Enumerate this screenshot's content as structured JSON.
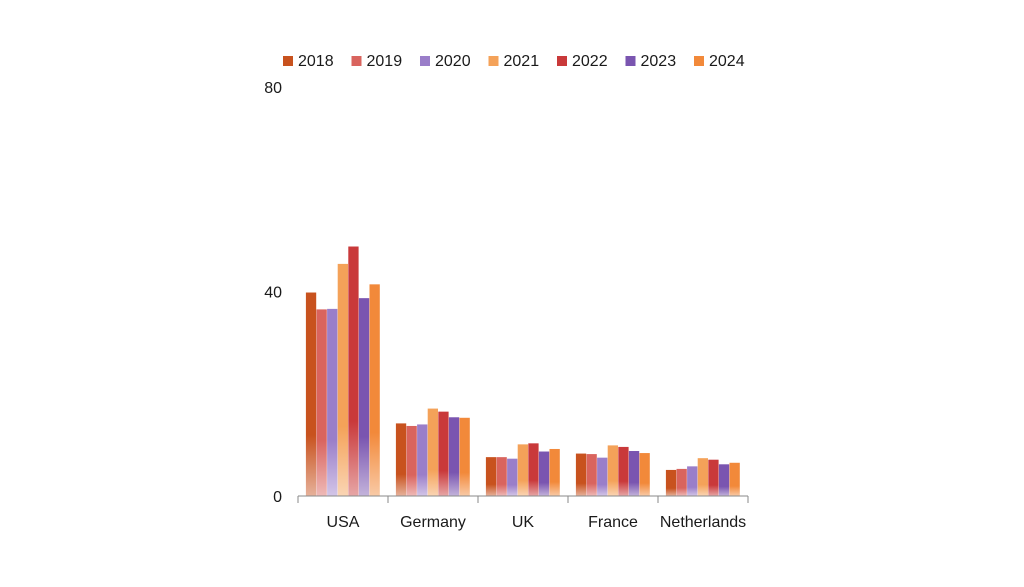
{
  "chart_data": {
    "type": "bar",
    "title": "",
    "xlabel": "",
    "ylabel": "",
    "ylim": [
      0,
      80
    ],
    "yticks": [
      {
        "value": 0,
        "label": "0"
      },
      {
        "value": 40,
        "label": "40"
      },
      {
        "value": 80,
        "label": "80"
      }
    ],
    "categories": [
      "USA",
      "Germany",
      "UK",
      "France",
      "Netherlands"
    ],
    "legend_position": "top",
    "grid": false,
    "series": [
      {
        "name": "2018",
        "color": "#C8521E",
        "values": [
          39.8,
          14.2,
          7.6,
          8.3,
          5.1
        ]
      },
      {
        "name": "2019",
        "color": "#D9645E",
        "values": [
          36.5,
          13.7,
          7.6,
          8.2,
          5.3
        ]
      },
      {
        "name": "2020",
        "color": "#9A7EC9",
        "values": [
          36.6,
          14.0,
          7.3,
          7.5,
          5.8
        ]
      },
      {
        "name": "2021",
        "color": "#F4A259",
        "values": [
          45.4,
          17.1,
          10.1,
          9.9,
          7.4
        ]
      },
      {
        "name": "2022",
        "color": "#C9393A",
        "values": [
          48.8,
          16.5,
          10.3,
          9.6,
          7.1
        ]
      },
      {
        "name": "2023",
        "color": "#7A55B0",
        "values": [
          38.7,
          15.4,
          8.7,
          8.8,
          6.2
        ]
      },
      {
        "name": "2024",
        "color": "#F2893A",
        "values": [
          41.4,
          15.3,
          9.2,
          8.4,
          6.5
        ]
      }
    ]
  }
}
